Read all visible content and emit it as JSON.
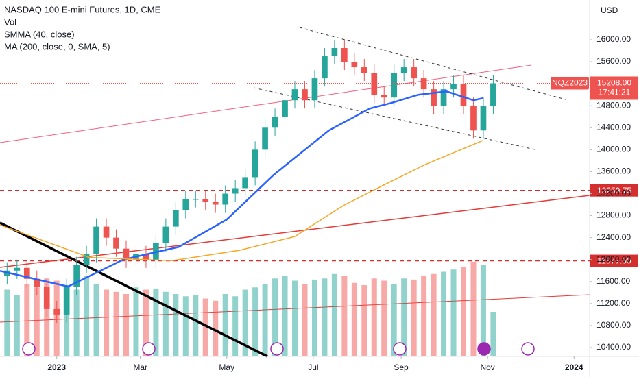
{
  "chart_data": {
    "type": "candlestick",
    "title": "NASDAQ 100 E-mini Futures, 1D, CME",
    "currency": "USD",
    "xlim": [
      -40,
      376
    ],
    "xticks": [
      {
        "value": 0,
        "label": "2023"
      },
      {
        "value": 59,
        "label": "Mar"
      },
      {
        "value": 120,
        "label": "May"
      },
      {
        "value": 181,
        "label": "Jul"
      },
      {
        "value": 243,
        "label": "Sep"
      },
      {
        "value": 304,
        "label": "Nov"
      },
      {
        "value": 365,
        "label": "2024"
      }
    ],
    "ylim": [
      10238,
      16723
    ],
    "yticks": [
      {
        "value": 16000,
        "label": "16000.00"
      },
      {
        "value": 15600,
        "label": "15600.00"
      },
      {
        "value": 15200,
        "label": "15200.00"
      },
      {
        "value": 14800,
        "label": "14800.00"
      },
      {
        "value": 14400,
        "label": "14400.00"
      },
      {
        "value": 14000,
        "label": "14000.00"
      },
      {
        "value": 13600,
        "label": "13600.00"
      },
      {
        "value": 13200,
        "label": "13200.00"
      },
      {
        "value": 12800,
        "label": "12800.00"
      },
      {
        "value": 12400,
        "label": "12400.00"
      },
      {
        "value": 12000,
        "label": "12000.00"
      },
      {
        "value": 11600,
        "label": "11600.00"
      },
      {
        "value": 11200,
        "label": "11200.00"
      },
      {
        "value": 10800,
        "label": "10800.00"
      },
      {
        "value": 10400,
        "label": "10400.00"
      }
    ],
    "up_color": "#26a69a",
    "down_color": "#ef5350",
    "candles": {
      "x": [
        -35,
        -28,
        -21,
        -14,
        -7,
        0,
        7,
        14,
        21,
        28,
        35,
        42,
        49,
        56,
        63,
        70,
        77,
        84,
        91,
        98,
        105,
        112,
        119,
        126,
        133,
        140,
        147,
        154,
        161,
        168,
        175,
        182,
        189,
        196,
        203,
        210,
        217,
        224,
        231,
        238,
        245,
        252,
        259,
        266,
        273,
        280,
        287,
        294,
        301,
        308
      ],
      "open": [
        11700,
        11800,
        11850,
        11650,
        11500,
        11100,
        11000,
        11500,
        11900,
        12100,
        12600,
        12400,
        12200,
        12000,
        12100,
        12000,
        12300,
        12600,
        12900,
        13100,
        13100,
        13050,
        13000,
        13200,
        13300,
        13500,
        14000,
        14400,
        14600,
        14900,
        15100,
        14900,
        15300,
        15700,
        15850,
        15600,
        15500,
        15400,
        15000,
        14950,
        15400,
        15500,
        15300,
        15100,
        14800,
        15100,
        15200,
        14800,
        14350,
        14800
      ],
      "high": [
        11950,
        12000,
        12000,
        11800,
        11650,
        11250,
        11650,
        12050,
        12250,
        12750,
        12750,
        12550,
        12350,
        12250,
        12250,
        12450,
        12750,
        13050,
        13250,
        13250,
        13250,
        13200,
        13350,
        13450,
        13650,
        14150,
        14550,
        14750,
        15050,
        15250,
        15250,
        15450,
        15850,
        16000,
        16000,
        15750,
        15650,
        15550,
        15150,
        15550,
        15650,
        15650,
        15450,
        15250,
        15250,
        15350,
        15350,
        14950,
        14950,
        15358
      ],
      "low": [
        11550,
        11650,
        11500,
        11350,
        10950,
        10850,
        10850,
        11350,
        11750,
        11950,
        12250,
        12050,
        11850,
        11850,
        11850,
        11850,
        12150,
        12450,
        12750,
        12950,
        12900,
        12850,
        12850,
        13050,
        13150,
        13350,
        13850,
        14250,
        14450,
        14750,
        14750,
        14750,
        15150,
        15550,
        15450,
        15350,
        15250,
        14850,
        14800,
        14800,
        15250,
        15150,
        14950,
        14650,
        14650,
        14950,
        14650,
        14200,
        14200,
        14650
      ],
      "close": [
        11800,
        11850,
        11650,
        11500,
        11100,
        11000,
        11500,
        11900,
        12100,
        12600,
        12400,
        12200,
        12000,
        12100,
        12000,
        12300,
        12600,
        12900,
        13100,
        13100,
        13050,
        13000,
        13200,
        13300,
        13500,
        14000,
        14400,
        14600,
        14900,
        15100,
        14900,
        15300,
        15700,
        15850,
        15600,
        15500,
        15400,
        15000,
        14950,
        15400,
        15500,
        15300,
        15100,
        14800,
        15100,
        15200,
        14800,
        14350,
        14800,
        15208
      ]
    },
    "volume": {
      "name": "Vol",
      "ylim": [
        0,
        3200
      ],
      "values": [
        600,
        550,
        650,
        620,
        700,
        680,
        640,
        600,
        720,
        650,
        600,
        580,
        560,
        620,
        600,
        610,
        580,
        560,
        540,
        550,
        520,
        500,
        560,
        540,
        600,
        620,
        650,
        700,
        720,
        680,
        650,
        690,
        700,
        740,
        720,
        660,
        640,
        700,
        680,
        650,
        700,
        690,
        720,
        740,
        760,
        780,
        800,
        850,
        820,
        400
      ]
    },
    "series": [
      {
        "name": "SMMA (40, close)",
        "color": "#2962ff",
        "x": [
          -40,
          8,
          47,
          86,
          120,
          153,
          192,
          221,
          236,
          255,
          275,
          294,
          301
        ],
        "values": [
          11795,
          11510,
          12000,
          12230,
          12730,
          13540,
          14350,
          14750,
          14850,
          15000,
          15060,
          14900,
          14940
        ]
      },
      {
        "name": "MA (200, close, 0, SMA, 5)",
        "color": "#f5a623",
        "x": [
          -40,
          23,
          81,
          129,
          168,
          202,
          231,
          260,
          289,
          301
        ],
        "values": [
          12630,
          12040,
          11980,
          12170,
          12420,
          12980,
          13360,
          13730,
          14040,
          14170
        ]
      }
    ],
    "levels": [
      {
        "value": 13259.75,
        "label": "13259.75"
      },
      {
        "value": 11977,
        "label": "11977.00"
      }
    ],
    "last_price": {
      "value": 15208,
      "label": "15208.00"
    },
    "countdown": "17:41:21",
    "symbol": "NQZ2023"
  }
}
